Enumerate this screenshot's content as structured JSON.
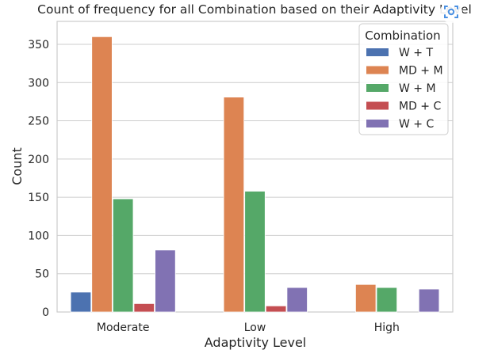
{
  "chart_data": {
    "type": "bar",
    "title": "Count of frequency for all Combination based on their Adaptivity Level",
    "xlabel": "Adaptivity Level",
    "ylabel": "Count",
    "categories": [
      "Moderate",
      "Low",
      "High"
    ],
    "ylim": [
      0,
      380
    ],
    "yticks": [
      0,
      50,
      100,
      150,
      200,
      250,
      300,
      350
    ],
    "grid": true,
    "legend": {
      "title": "Combination",
      "placement": "top-right"
    },
    "series": [
      {
        "name": "W + T",
        "color": "#4c72b0",
        "values": [
          26,
          0,
          0
        ]
      },
      {
        "name": "MD + M",
        "color": "#dd8452",
        "values": [
          360,
          281,
          36
        ]
      },
      {
        "name": "W + M",
        "color": "#55a868",
        "values": [
          148,
          158,
          32
        ]
      },
      {
        "name": "MD + C",
        "color": "#c44e52",
        "values": [
          11,
          8,
          0
        ]
      },
      {
        "name": "W + C",
        "color": "#8172b3",
        "values": [
          81,
          32,
          30
        ]
      }
    ]
  },
  "overlay": {
    "icon": "screen-capture-icon",
    "color": "#4a90e2"
  }
}
